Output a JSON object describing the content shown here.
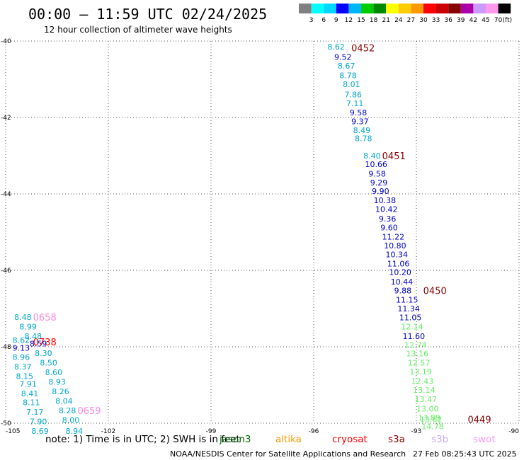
{
  "header": {
    "title": "00:00 – 11:59 UTC 02/24/2025",
    "subtitle": "12 hour collection of altimeter wave heights"
  },
  "legend": {
    "colors": [
      "#808080",
      "#00ffff",
      "#00d8ff",
      "#0000ff",
      "#00b4ff",
      "#00cc00",
      "#008800",
      "#ffff00",
      "#ffcc00",
      "#ff9900",
      "#ff0000",
      "#cc0000",
      "#880000",
      "#aa00aa",
      "#cc99ff",
      "#ff99ee",
      "#000000"
    ],
    "labels": [
      "3",
      "6",
      "9",
      "12",
      "15",
      "18",
      "21",
      "24",
      "27",
      "30",
      "33",
      "36",
      "39",
      "42",
      "45",
      "70",
      "(ft)"
    ]
  },
  "footer": {
    "note_prefix": "note: 1) Time is in UTC; 2) SWH is in feet",
    "satellites": [
      {
        "name": "jason3",
        "color": "#006600"
      },
      {
        "name": "altika",
        "color": "#ff9900"
      },
      {
        "name": "cryosat",
        "color": "#ff0000"
      },
      {
        "name": "s3a",
        "color": "#880000"
      },
      {
        "name": "s3b",
        "color": "#c8a8ff"
      },
      {
        "name": "swot",
        "color": "#ff99ee"
      }
    ],
    "credit": "NOAA/NESDIS Center for Satellite Applications and Research",
    "timestamp": "27 Feb 08:25:43 UTC 2025"
  },
  "chart_data": {
    "type": "scatter",
    "title": "00:00 – 11:59 UTC 02/24/2025",
    "xlim": [
      -105,
      -90
    ],
    "ylim": [
      -50,
      -40
    ],
    "x_ticks": [
      -105,
      -102,
      -99,
      -96,
      -93,
      -90
    ],
    "y_ticks": [
      -40,
      -42,
      -44,
      -46,
      -48,
      -50
    ],
    "grid": true,
    "points": [
      {
        "x": -95.6,
        "y": -40.15,
        "label": "8.62",
        "color": "#00aacc"
      },
      {
        "x": -95.4,
        "y": -40.42,
        "label": "9.52",
        "color": "#0000cc"
      },
      {
        "x": -95.3,
        "y": -40.65,
        "label": "8.67",
        "color": "#00aacc"
      },
      {
        "x": -95.25,
        "y": -40.9,
        "label": "8.78",
        "color": "#00aacc"
      },
      {
        "x": -95.15,
        "y": -41.13,
        "label": "8.01",
        "color": "#00aacc"
      },
      {
        "x": -95.1,
        "y": -41.4,
        "label": "7.86",
        "color": "#00aacc"
      },
      {
        "x": -95.05,
        "y": -41.63,
        "label": "7.11",
        "color": "#00aacc"
      },
      {
        "x": -94.95,
        "y": -41.87,
        "label": "9.58",
        "color": "#0000cc"
      },
      {
        "x": -94.9,
        "y": -42.1,
        "label": "9.37",
        "color": "#0000cc"
      },
      {
        "x": -94.85,
        "y": -42.33,
        "label": "8.49",
        "color": "#00aacc"
      },
      {
        "x": -94.8,
        "y": -42.55,
        "label": "8.78",
        "color": "#00aacc"
      },
      {
        "x": -94.55,
        "y": -43.0,
        "label": "8.40",
        "color": "#00aacc"
      },
      {
        "x": -94.5,
        "y": -43.22,
        "label": "10.66",
        "color": "#0000cc"
      },
      {
        "x": -94.4,
        "y": -43.47,
        "label": "9.58",
        "color": "#0000cc"
      },
      {
        "x": -94.35,
        "y": -43.7,
        "label": "9.29",
        "color": "#0000cc"
      },
      {
        "x": -94.3,
        "y": -43.93,
        "label": "9.90",
        "color": "#0000cc"
      },
      {
        "x": -94.25,
        "y": -44.17,
        "label": "10.38",
        "color": "#0000cc"
      },
      {
        "x": -94.2,
        "y": -44.4,
        "label": "10.42",
        "color": "#0000cc"
      },
      {
        "x": -94.1,
        "y": -44.65,
        "label": "9.36",
        "color": "#0000cc"
      },
      {
        "x": -94.05,
        "y": -44.88,
        "label": "9.60",
        "color": "#0000cc"
      },
      {
        "x": -94.0,
        "y": -45.12,
        "label": "11.22",
        "color": "#0000cc"
      },
      {
        "x": -93.95,
        "y": -45.35,
        "label": "10.80",
        "color": "#0000cc"
      },
      {
        "x": -93.9,
        "y": -45.58,
        "label": "10.34",
        "color": "#0000cc"
      },
      {
        "x": -93.85,
        "y": -45.82,
        "label": "11.06",
        "color": "#0000cc"
      },
      {
        "x": -93.8,
        "y": -46.05,
        "label": "10.20",
        "color": "#0000cc"
      },
      {
        "x": -93.75,
        "y": -46.3,
        "label": "10.44",
        "color": "#0000cc"
      },
      {
        "x": -93.65,
        "y": -46.53,
        "label": "9.88",
        "color": "#0000cc"
      },
      {
        "x": -93.6,
        "y": -46.77,
        "label": "11.15",
        "color": "#0000cc"
      },
      {
        "x": -93.55,
        "y": -47.0,
        "label": "11.34",
        "color": "#0000cc"
      },
      {
        "x": -93.5,
        "y": -47.23,
        "label": "11.05",
        "color": "#0000cc"
      },
      {
        "x": -93.45,
        "y": -47.47,
        "label": "12.14",
        "color": "#66ee66"
      },
      {
        "x": -93.4,
        "y": -47.72,
        "label": "11.60",
        "color": "#0000cc"
      },
      {
        "x": -93.35,
        "y": -47.95,
        "label": "12.74",
        "color": "#66ee66"
      },
      {
        "x": -93.3,
        "y": -48.18,
        "label": "13.16",
        "color": "#66ee66"
      },
      {
        "x": -93.25,
        "y": -48.42,
        "label": "12.57",
        "color": "#66ee66"
      },
      {
        "x": -93.2,
        "y": -48.65,
        "label": "13.19",
        "color": "#66ee66"
      },
      {
        "x": -93.15,
        "y": -48.9,
        "label": "12.43",
        "color": "#66ee66"
      },
      {
        "x": -93.1,
        "y": -49.13,
        "label": "13.14",
        "color": "#66ee66"
      },
      {
        "x": -93.05,
        "y": -49.37,
        "label": "13.47",
        "color": "#66ee66"
      },
      {
        "x": -93.0,
        "y": -49.62,
        "label": "13.00",
        "color": "#66ee66"
      },
      {
        "x": -92.95,
        "y": -49.85,
        "label": "13.89",
        "color": "#66ee66"
      },
      {
        "x": -92.9,
        "y": -49.9,
        "label": "13.62",
        "color": "#66ee66"
      },
      {
        "x": -92.85,
        "y": -50.08,
        "label": "14.78",
        "color": "#66ee66"
      },
      {
        "x": -104.75,
        "y": -47.22,
        "label": "8.48",
        "color": "#00aacc"
      },
      {
        "x": -104.6,
        "y": -47.47,
        "label": "8.99",
        "color": "#00aacc"
      },
      {
        "x": -104.45,
        "y": -47.72,
        "label": "8.48",
        "color": "#00aacc"
      },
      {
        "x": -104.8,
        "y": -47.82,
        "label": "8.62",
        "color": "#00aacc"
      },
      {
        "x": -104.3,
        "y": -47.92,
        "label": "8.59",
        "color": "#0000cc"
      },
      {
        "x": -104.8,
        "y": -48.03,
        "label": "9.13",
        "color": "#0000cc"
      },
      {
        "x": -104.15,
        "y": -48.17,
        "label": "8.30",
        "color": "#00aacc"
      },
      {
        "x": -104.8,
        "y": -48.27,
        "label": "8.96",
        "color": "#00aacc"
      },
      {
        "x": -104.0,
        "y": -48.42,
        "label": "8.50",
        "color": "#00aacc"
      },
      {
        "x": -104.75,
        "y": -48.52,
        "label": "8.37",
        "color": "#00aacc"
      },
      {
        "x": -103.85,
        "y": -48.67,
        "label": "8.60",
        "color": "#00aacc"
      },
      {
        "x": -104.7,
        "y": -48.77,
        "label": "8.15",
        "color": "#00aacc"
      },
      {
        "x": -103.75,
        "y": -48.92,
        "label": "8.93",
        "color": "#00aacc"
      },
      {
        "x": -104.6,
        "y": -48.97,
        "label": "7.91",
        "color": "#00aacc"
      },
      {
        "x": -103.65,
        "y": -49.17,
        "label": "8.26",
        "color": "#00aacc"
      },
      {
        "x": -104.55,
        "y": -49.22,
        "label": "8.41",
        "color": "#00aacc"
      },
      {
        "x": -103.55,
        "y": -49.42,
        "label": "8.04",
        "color": "#00aacc"
      },
      {
        "x": -104.5,
        "y": -49.45,
        "label": "8.11",
        "color": "#00aacc"
      },
      {
        "x": -103.45,
        "y": -49.67,
        "label": "8.28",
        "color": "#00aacc"
      },
      {
        "x": -104.4,
        "y": -49.7,
        "label": "7.17",
        "color": "#00aacc"
      },
      {
        "x": -103.35,
        "y": -49.92,
        "label": "8.00",
        "color": "#00aacc"
      },
      {
        "x": -104.3,
        "y": -49.95,
        "label": "7.90",
        "color": "#00aacc"
      },
      {
        "x": -103.25,
        "y": -50.2,
        "label": "8.94",
        "color": "#00aacc"
      },
      {
        "x": -104.25,
        "y": -50.2,
        "label": "8.69",
        "color": "#00aacc"
      }
    ],
    "pass_labels": [
      {
        "x": -94.9,
        "y": -40.18,
        "label": "0452",
        "color": "#880000"
      },
      {
        "x": -94.0,
        "y": -43.0,
        "label": "0451",
        "color": "#880000"
      },
      {
        "x": -92.8,
        "y": -46.53,
        "label": "0450",
        "color": "#880000"
      },
      {
        "x": -91.5,
        "y": -49.9,
        "label": "0449",
        "color": "#880000"
      },
      {
        "x": -104.2,
        "y": -47.22,
        "label": "0658",
        "color": "#ff88dd"
      },
      {
        "x": -104.2,
        "y": -47.87,
        "label": "0738",
        "color": "#ff0000"
      },
      {
        "x": -102.9,
        "y": -49.67,
        "label": "0659",
        "color": "#ff88dd"
      }
    ]
  }
}
